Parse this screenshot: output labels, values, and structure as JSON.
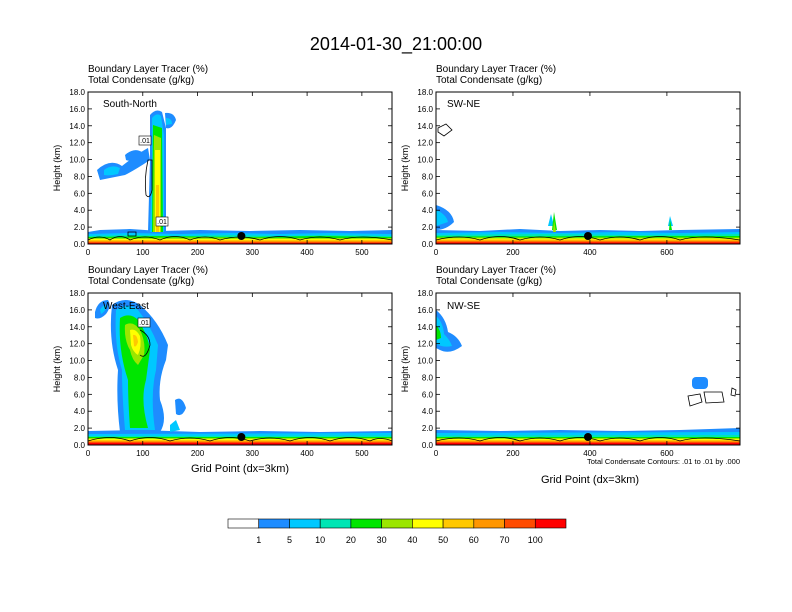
{
  "figure": {
    "title": "2014-01-30_21:00:00",
    "contour_note": "Total Condensate Contours: .01 to .01 by .000",
    "colorbar": {
      "levels": [
        "1",
        "5",
        "10",
        "20",
        "30",
        "40",
        "50",
        "60",
        "70",
        "100"
      ],
      "colors": [
        "#ffffff",
        "#1e8cff",
        "#00c8ff",
        "#00e6b4",
        "#00e600",
        "#9be600",
        "#ffff00",
        "#ffc800",
        "#ff9600",
        "#ff4b00",
        "#ff0000"
      ]
    }
  },
  "chart_data": [
    {
      "type": "heatmap",
      "title": "South-North",
      "field1": "Boundary Layer Tracer   (%)",
      "field2": "Total Condensate   (g/kg)",
      "ylabel": "Height (km)",
      "xlabel": "",
      "xticks": [
        "0",
        "100",
        "200",
        "300",
        "400",
        "500"
      ],
      "xmax": 555,
      "yticks": [
        "0.0",
        "2.0",
        "4.0",
        "6.0",
        "8.0",
        "10.0",
        "12.0",
        "14.0",
        "16.0",
        "18.0"
      ],
      "ylim": [
        0,
        18
      ],
      "contour_labels": [
        ".01",
        ".01"
      ],
      "marker_x": 280
    },
    {
      "type": "heatmap",
      "title": "SW-NE",
      "field1": "Boundary Layer Tracer   (%)",
      "field2": "Total Condensate   (g/kg)",
      "ylabel": "Height (km)",
      "xlabel": "",
      "xticks": [
        "0",
        "200",
        "400",
        "600"
      ],
      "xmax": 790,
      "yticks": [
        "0.0",
        "2.0",
        "4.0",
        "6.0",
        "8.0",
        "10.0",
        "12.0",
        "14.0",
        "16.0",
        "18.0"
      ],
      "ylim": [
        0,
        18
      ],
      "contour_labels": [],
      "marker_x": 395
    },
    {
      "type": "heatmap",
      "title": "West-East",
      "field1": "Boundary Layer Tracer   (%)",
      "field2": "Total Condensate   (g/kg)",
      "ylabel": "Height (km)",
      "xlabel": "Grid Point (dx=3km)",
      "xticks": [
        "0",
        "100",
        "200",
        "300",
        "400",
        "500"
      ],
      "xmax": 555,
      "yticks": [
        "0.0",
        "2.0",
        "4.0",
        "6.0",
        "8.0",
        "10.0",
        "12.0",
        "14.0",
        "16.0",
        "18.0"
      ],
      "ylim": [
        0,
        18
      ],
      "contour_labels": [
        ".01"
      ],
      "marker_x": 280
    },
    {
      "type": "heatmap",
      "title": "NW-SE",
      "field1": "Boundary Layer Tracer   (%)",
      "field2": "Total Condensate   (g/kg)",
      "ylabel": "Height (km)",
      "xlabel": "Grid Point (dx=3km)",
      "xticks": [
        "0",
        "200",
        "400",
        "600"
      ],
      "xmax": 790,
      "yticks": [
        "0.0",
        "2.0",
        "4.0",
        "6.0",
        "8.0",
        "10.0",
        "12.0",
        "14.0",
        "16.0",
        "18.0"
      ],
      "ylim": [
        0,
        18
      ],
      "contour_labels": [],
      "marker_x": 395
    }
  ]
}
